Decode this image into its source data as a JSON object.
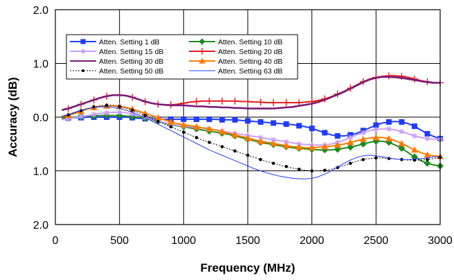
{
  "chart_data": {
    "type": "line",
    "xlabel": "Frequency (MHz)",
    "ylabel": "Accuracy (dB)",
    "xlim": [
      0,
      3000
    ],
    "ylim": [
      -2.0,
      2.0
    ],
    "x_ticks": [
      "0",
      "500",
      "1000",
      "1500",
      "2000",
      "2500",
      "3000"
    ],
    "y_ticks": [
      "2.0",
      "1.0",
      "0.0",
      "1.0",
      "2.0"
    ],
    "grid": true,
    "legend_placement": "top-left",
    "series": [
      {
        "name": "Atten. Setting 1 dB",
        "color": "#1f3bff",
        "marker": "square",
        "x": [
          50,
          100,
          150,
          200,
          250,
          300,
          350,
          400,
          450,
          500,
          550,
          600,
          650,
          700,
          750,
          800,
          850,
          900,
          950,
          1000,
          1050,
          1100,
          1150,
          1200,
          1250,
          1300,
          1350,
          1400,
          1450,
          1500,
          1550,
          1600,
          1650,
          1700,
          1750,
          1800,
          1850,
          1900,
          1950,
          2000,
          2050,
          2100,
          2150,
          2200,
          2250,
          2300,
          2350,
          2400,
          2450,
          2500,
          2550,
          2600,
          2650,
          2700,
          2750,
          2800,
          2850,
          2900,
          2950,
          3000
        ],
        "values": [
          -0.02,
          -0.02,
          -0.01,
          -0.01,
          0.0,
          0.0,
          0.0,
          0.0,
          0.0,
          0.0,
          0.0,
          -0.01,
          -0.02,
          -0.03,
          -0.03,
          -0.04,
          -0.04,
          -0.04,
          -0.04,
          -0.04,
          -0.04,
          -0.04,
          -0.04,
          -0.04,
          -0.04,
          -0.05,
          -0.05,
          -0.05,
          -0.06,
          -0.07,
          -0.08,
          -0.09,
          -0.1,
          -0.11,
          -0.12,
          -0.13,
          -0.14,
          -0.16,
          -0.18,
          -0.21,
          -0.25,
          -0.29,
          -0.33,
          -0.35,
          -0.35,
          -0.33,
          -0.3,
          -0.25,
          -0.2,
          -0.15,
          -0.11,
          -0.09,
          -0.08,
          -0.09,
          -0.12,
          -0.17,
          -0.24,
          -0.31,
          -0.36,
          -0.4
        ]
      },
      {
        "name": "Atten. Setting 10 dB",
        "color": "#1e8a1e",
        "marker": "diamond",
        "x": [
          50,
          100,
          150,
          200,
          250,
          300,
          350,
          400,
          450,
          500,
          550,
          600,
          650,
          700,
          750,
          800,
          850,
          900,
          950,
          1000,
          1050,
          1100,
          1150,
          1200,
          1250,
          1300,
          1350,
          1400,
          1450,
          1500,
          1550,
          1600,
          1650,
          1700,
          1750,
          1800,
          1850,
          1900,
          1950,
          2000,
          2050,
          2100,
          2150,
          2200,
          2250,
          2300,
          2350,
          2400,
          2450,
          2500,
          2550,
          2600,
          2650,
          2700,
          2750,
          2800,
          2850,
          2900,
          2950,
          3000
        ],
        "values": [
          -0.02,
          -0.01,
          0.0,
          0.01,
          0.02,
          0.02,
          0.03,
          0.03,
          0.03,
          0.03,
          0.02,
          0.01,
          0.0,
          -0.02,
          -0.05,
          -0.08,
          -0.11,
          -0.14,
          -0.16,
          -0.18,
          -0.2,
          -0.22,
          -0.24,
          -0.26,
          -0.28,
          -0.3,
          -0.32,
          -0.35,
          -0.38,
          -0.41,
          -0.44,
          -0.47,
          -0.49,
          -0.51,
          -0.53,
          -0.55,
          -0.57,
          -0.58,
          -0.59,
          -0.6,
          -0.61,
          -0.61,
          -0.61,
          -0.6,
          -0.58,
          -0.56,
          -0.53,
          -0.5,
          -0.47,
          -0.45,
          -0.45,
          -0.47,
          -0.52,
          -0.58,
          -0.66,
          -0.74,
          -0.81,
          -0.86,
          -0.89,
          -0.91
        ]
      },
      {
        "name": "Atten. Setting 15 dB",
        "color": "#c9a0ff",
        "marker": "star",
        "x": [
          50,
          100,
          150,
          200,
          250,
          300,
          350,
          400,
          450,
          500,
          550,
          600,
          650,
          700,
          750,
          800,
          850,
          900,
          950,
          1000,
          1050,
          1100,
          1150,
          1200,
          1250,
          1300,
          1350,
          1400,
          1450,
          1500,
          1550,
          1600,
          1650,
          1700,
          1750,
          1800,
          1850,
          1900,
          1950,
          2000,
          2050,
          2100,
          2150,
          2200,
          2250,
          2300,
          2350,
          2400,
          2450,
          2500,
          2550,
          2600,
          2650,
          2700,
          2750,
          2800,
          2850,
          2900,
          2950,
          3000
        ],
        "values": [
          -0.05,
          -0.03,
          -0.01,
          0.01,
          0.03,
          0.05,
          0.07,
          0.08,
          0.09,
          0.09,
          0.08,
          0.06,
          0.03,
          0.0,
          -0.04,
          -0.07,
          -0.1,
          -0.13,
          -0.15,
          -0.17,
          -0.18,
          -0.19,
          -0.2,
          -0.22,
          -0.24,
          -0.26,
          -0.28,
          -0.3,
          -0.32,
          -0.34,
          -0.36,
          -0.38,
          -0.4,
          -0.42,
          -0.44,
          -0.46,
          -0.48,
          -0.5,
          -0.51,
          -0.52,
          -0.52,
          -0.52,
          -0.5,
          -0.47,
          -0.43,
          -0.38,
          -0.33,
          -0.29,
          -0.25,
          -0.23,
          -0.22,
          -0.22,
          -0.24,
          -0.27,
          -0.31,
          -0.35,
          -0.38,
          -0.4,
          -0.41,
          -0.41
        ]
      },
      {
        "name": "Atten. Setting 20 dB",
        "color": "#e21a1a",
        "marker": "plus",
        "x": [
          50,
          100,
          150,
          200,
          250,
          300,
          350,
          400,
          450,
          500,
          550,
          600,
          650,
          700,
          750,
          800,
          850,
          900,
          950,
          1000,
          1050,
          1100,
          1150,
          1200,
          1250,
          1300,
          1350,
          1400,
          1450,
          1500,
          1550,
          1600,
          1650,
          1700,
          1750,
          1800,
          1850,
          1900,
          1950,
          2000,
          2050,
          2100,
          2150,
          2200,
          2250,
          2300,
          2350,
          2400,
          2450,
          2500,
          2550,
          2600,
          2650,
          2700,
          2750,
          2800,
          2850,
          2900,
          2950,
          3000
        ],
        "values": [
          0.13,
          0.16,
          0.2,
          0.24,
          0.28,
          0.32,
          0.36,
          0.39,
          0.41,
          0.41,
          0.4,
          0.37,
          0.33,
          0.29,
          0.26,
          0.24,
          0.23,
          0.23,
          0.24,
          0.26,
          0.28,
          0.29,
          0.3,
          0.3,
          0.3,
          0.3,
          0.3,
          0.3,
          0.29,
          0.29,
          0.28,
          0.28,
          0.27,
          0.27,
          0.27,
          0.27,
          0.27,
          0.27,
          0.28,
          0.29,
          0.31,
          0.34,
          0.38,
          0.43,
          0.48,
          0.54,
          0.6,
          0.66,
          0.71,
          0.74,
          0.76,
          0.77,
          0.77,
          0.76,
          0.74,
          0.71,
          0.68,
          0.66,
          0.64,
          0.64
        ]
      },
      {
        "name": "Atten. Setting 30 dB",
        "color": "#7a1a7a",
        "marker": "none",
        "x": [
          50,
          100,
          150,
          200,
          250,
          300,
          350,
          400,
          450,
          500,
          550,
          600,
          650,
          700,
          750,
          800,
          850,
          900,
          950,
          1000,
          1050,
          1100,
          1150,
          1200,
          1250,
          1300,
          1350,
          1400,
          1450,
          1500,
          1550,
          1600,
          1650,
          1700,
          1750,
          1800,
          1850,
          1900,
          1950,
          2000,
          2050,
          2100,
          2150,
          2200,
          2250,
          2300,
          2350,
          2400,
          2450,
          2500,
          2550,
          2600,
          2650,
          2700,
          2750,
          2800,
          2850,
          2900,
          2950,
          3000
        ],
        "values": [
          0.13,
          0.16,
          0.2,
          0.24,
          0.28,
          0.32,
          0.36,
          0.39,
          0.41,
          0.41,
          0.4,
          0.37,
          0.33,
          0.29,
          0.26,
          0.24,
          0.23,
          0.22,
          0.22,
          0.22,
          0.21,
          0.2,
          0.2,
          0.19,
          0.19,
          0.18,
          0.18,
          0.17,
          0.17,
          0.16,
          0.16,
          0.16,
          0.16,
          0.16,
          0.17,
          0.18,
          0.19,
          0.21,
          0.23,
          0.25,
          0.28,
          0.32,
          0.37,
          0.42,
          0.47,
          0.53,
          0.59,
          0.65,
          0.7,
          0.73,
          0.75,
          0.75,
          0.74,
          0.73,
          0.71,
          0.69,
          0.67,
          0.65,
          0.64,
          0.64
        ]
      },
      {
        "name": "Atten. Setting 40 dB",
        "color": "#ff7a00",
        "marker": "triangle",
        "x": [
          50,
          100,
          150,
          200,
          250,
          300,
          350,
          400,
          450,
          500,
          550,
          600,
          650,
          700,
          750,
          800,
          850,
          900,
          950,
          1000,
          1050,
          1100,
          1150,
          1200,
          1250,
          1300,
          1350,
          1400,
          1450,
          1500,
          1550,
          1600,
          1650,
          1700,
          1750,
          1800,
          1850,
          1900,
          1950,
          2000,
          2050,
          2100,
          2150,
          2200,
          2250,
          2300,
          2350,
          2400,
          2450,
          2500,
          2550,
          2600,
          2650,
          2700,
          2750,
          2800,
          2850,
          2900,
          2950,
          3000
        ],
        "values": [
          0.0,
          0.03,
          0.07,
          0.11,
          0.15,
          0.18,
          0.2,
          0.21,
          0.21,
          0.2,
          0.18,
          0.15,
          0.11,
          0.07,
          0.03,
          -0.01,
          -0.05,
          -0.09,
          -0.12,
          -0.14,
          -0.16,
          -0.18,
          -0.2,
          -0.22,
          -0.24,
          -0.27,
          -0.3,
          -0.33,
          -0.36,
          -0.39,
          -0.42,
          -0.45,
          -0.47,
          -0.49,
          -0.51,
          -0.53,
          -0.55,
          -0.56,
          -0.57,
          -0.57,
          -0.56,
          -0.55,
          -0.54,
          -0.52,
          -0.5,
          -0.47,
          -0.44,
          -0.41,
          -0.39,
          -0.38,
          -0.38,
          -0.4,
          -0.44,
          -0.49,
          -0.55,
          -0.61,
          -0.66,
          -0.7,
          -0.72,
          -0.73
        ]
      },
      {
        "name": "Atten. Setting 50 dB",
        "color": "#000000",
        "marker": "circle",
        "dashed": true,
        "x": [
          50,
          100,
          150,
          200,
          250,
          300,
          350,
          400,
          450,
          500,
          550,
          600,
          650,
          700,
          750,
          800,
          850,
          900,
          950,
          1000,
          1050,
          1100,
          1150,
          1200,
          1250,
          1300,
          1350,
          1400,
          1450,
          1500,
          1550,
          1600,
          1650,
          1700,
          1750,
          1800,
          1850,
          1900,
          1950,
          2000,
          2050,
          2100,
          2150,
          2200,
          2250,
          2300,
          2350,
          2400,
          2450,
          2500,
          2550,
          2600,
          2650,
          2700,
          2750,
          2800,
          2850,
          2900,
          2950,
          3000
        ],
        "values": [
          0.0,
          0.04,
          0.08,
          0.12,
          0.16,
          0.19,
          0.21,
          0.22,
          0.22,
          0.2,
          0.17,
          0.13,
          0.08,
          0.03,
          -0.03,
          -0.08,
          -0.13,
          -0.18,
          -0.23,
          -0.28,
          -0.33,
          -0.38,
          -0.43,
          -0.47,
          -0.51,
          -0.55,
          -0.59,
          -0.63,
          -0.67,
          -0.71,
          -0.75,
          -0.79,
          -0.83,
          -0.86,
          -0.89,
          -0.92,
          -0.95,
          -0.97,
          -0.99,
          -1.0,
          -1.0,
          -0.99,
          -0.97,
          -0.94,
          -0.9,
          -0.86,
          -0.82,
          -0.79,
          -0.77,
          -0.76,
          -0.76,
          -0.77,
          -0.78,
          -0.79,
          -0.8,
          -0.8,
          -0.8,
          -0.79,
          -0.77,
          -0.75
        ]
      },
      {
        "name": "Atten. Setting 63 dB",
        "color": "#1f3bff",
        "marker": "none",
        "thin": true,
        "x": [
          50,
          100,
          150,
          200,
          250,
          300,
          350,
          400,
          450,
          500,
          550,
          600,
          650,
          700,
          750,
          800,
          850,
          900,
          950,
          1000,
          1050,
          1100,
          1150,
          1200,
          1250,
          1300,
          1350,
          1400,
          1450,
          1500,
          1550,
          1600,
          1650,
          1700,
          1750,
          1800,
          1850,
          1900,
          1950,
          2000,
          2050,
          2100,
          2150,
          2200,
          2250,
          2300,
          2350,
          2400,
          2450,
          2500,
          2550,
          2600,
          2650,
          2700,
          2750,
          2800,
          2850,
          2900,
          2950,
          3000
        ],
        "values": [
          0.02,
          0.05,
          0.09,
          0.13,
          0.16,
          0.18,
          0.19,
          0.19,
          0.18,
          0.16,
          0.13,
          0.09,
          0.04,
          -0.01,
          -0.07,
          -0.13,
          -0.19,
          -0.25,
          -0.31,
          -0.37,
          -0.43,
          -0.49,
          -0.55,
          -0.61,
          -0.66,
          -0.71,
          -0.76,
          -0.81,
          -0.86,
          -0.91,
          -0.96,
          -1.0,
          -1.04,
          -1.07,
          -1.1,
          -1.12,
          -1.14,
          -1.15,
          -1.15,
          -1.14,
          -1.11,
          -1.06,
          -1.0,
          -0.93,
          -0.86,
          -0.8,
          -0.75,
          -0.72,
          -0.71,
          -0.72,
          -0.74,
          -0.76,
          -0.78,
          -0.79,
          -0.79,
          -0.78,
          -0.77,
          -0.76,
          -0.74,
          -0.73
        ]
      }
    ]
  }
}
